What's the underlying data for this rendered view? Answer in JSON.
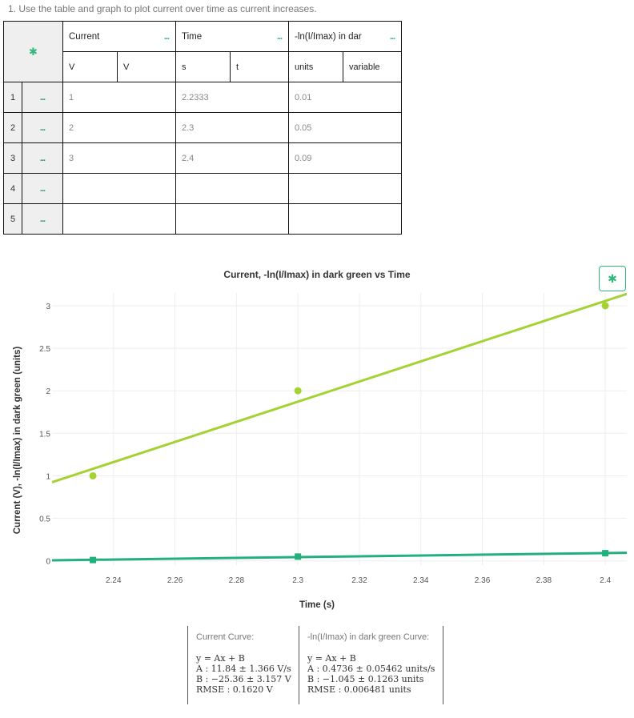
{
  "instruction": "1. Use the table and graph to plot current over time as current increases.",
  "table": {
    "columns": [
      {
        "name": "Current",
        "unit": "V",
        "sym": "V",
        "dots": "..."
      },
      {
        "name": "Time",
        "unit": "s",
        "sym": "t",
        "dots": "..."
      },
      {
        "name": "-ln(I/Imax) in dar",
        "unit": "units",
        "sym": "variable",
        "dots": "..."
      }
    ],
    "rows": [
      {
        "num": "1",
        "dots": "...",
        "v": [
          "1",
          "2.2333",
          "0.01"
        ]
      },
      {
        "num": "2",
        "dots": "...",
        "v": [
          "2",
          "2.3",
          "0.05"
        ]
      },
      {
        "num": "3",
        "dots": "...",
        "v": [
          "3",
          "2.4",
          "0.09"
        ]
      },
      {
        "num": "4",
        "dots": "...",
        "v": [
          "",
          "",
          ""
        ]
      },
      {
        "num": "5",
        "dots": "...",
        "v": [
          "",
          "",
          ""
        ]
      }
    ]
  },
  "chart_data": {
    "type": "scatter",
    "title": "Current, -ln(I/Imax) in dark green vs Time",
    "xlabel": "Time (s)",
    "ylabel": "Current (V), -ln(I/Imax) in dark green (units)",
    "xlim": [
      2.22,
      2.407
    ],
    "ylim": [
      -0.05,
      3.15
    ],
    "x_ticks": [
      "2.24",
      "2.26",
      "2.28",
      "2.3",
      "2.32",
      "2.34",
      "2.36",
      "2.38",
      "2.4"
    ],
    "y_ticks": [
      "0",
      "0.5",
      "1",
      "1.5",
      "2",
      "2.5",
      "3"
    ],
    "grid": true,
    "series": [
      {
        "name": "Current",
        "color": "#a4d233",
        "marker": "circle",
        "x": [
          2.2333,
          2.3,
          2.4
        ],
        "y": [
          1,
          2,
          3
        ],
        "fit": {
          "A": 11.84,
          "B": -25.36
        }
      },
      {
        "name": "-ln(I/Imax) in dark green",
        "color": "#22b07d",
        "marker": "square",
        "x": [
          2.2333,
          2.3,
          2.4
        ],
        "y": [
          0.01,
          0.05,
          0.09
        ],
        "fit": {
          "A": 0.4736,
          "B": -1.045
        }
      }
    ]
  },
  "fits": [
    {
      "caption": "Current Curve:",
      "eq": "y = Ax + B",
      "a": "A : 11.84 ± 1.366 V/s",
      "b": "B : −25.36 ± 3.157 V",
      "rmse": "RMSE : 0.1620 V"
    },
    {
      "caption": "-ln(I/Imax) in dark green Curve:",
      "eq": "y = Ax + B",
      "a": "A : 0.4736 ± 0.05462 units/s",
      "b": "B : −1.045 ± 0.1263 units",
      "rmse": "RMSE : 0.006481 units"
    }
  ],
  "ui": {
    "gear_icon": "gear-icon"
  }
}
